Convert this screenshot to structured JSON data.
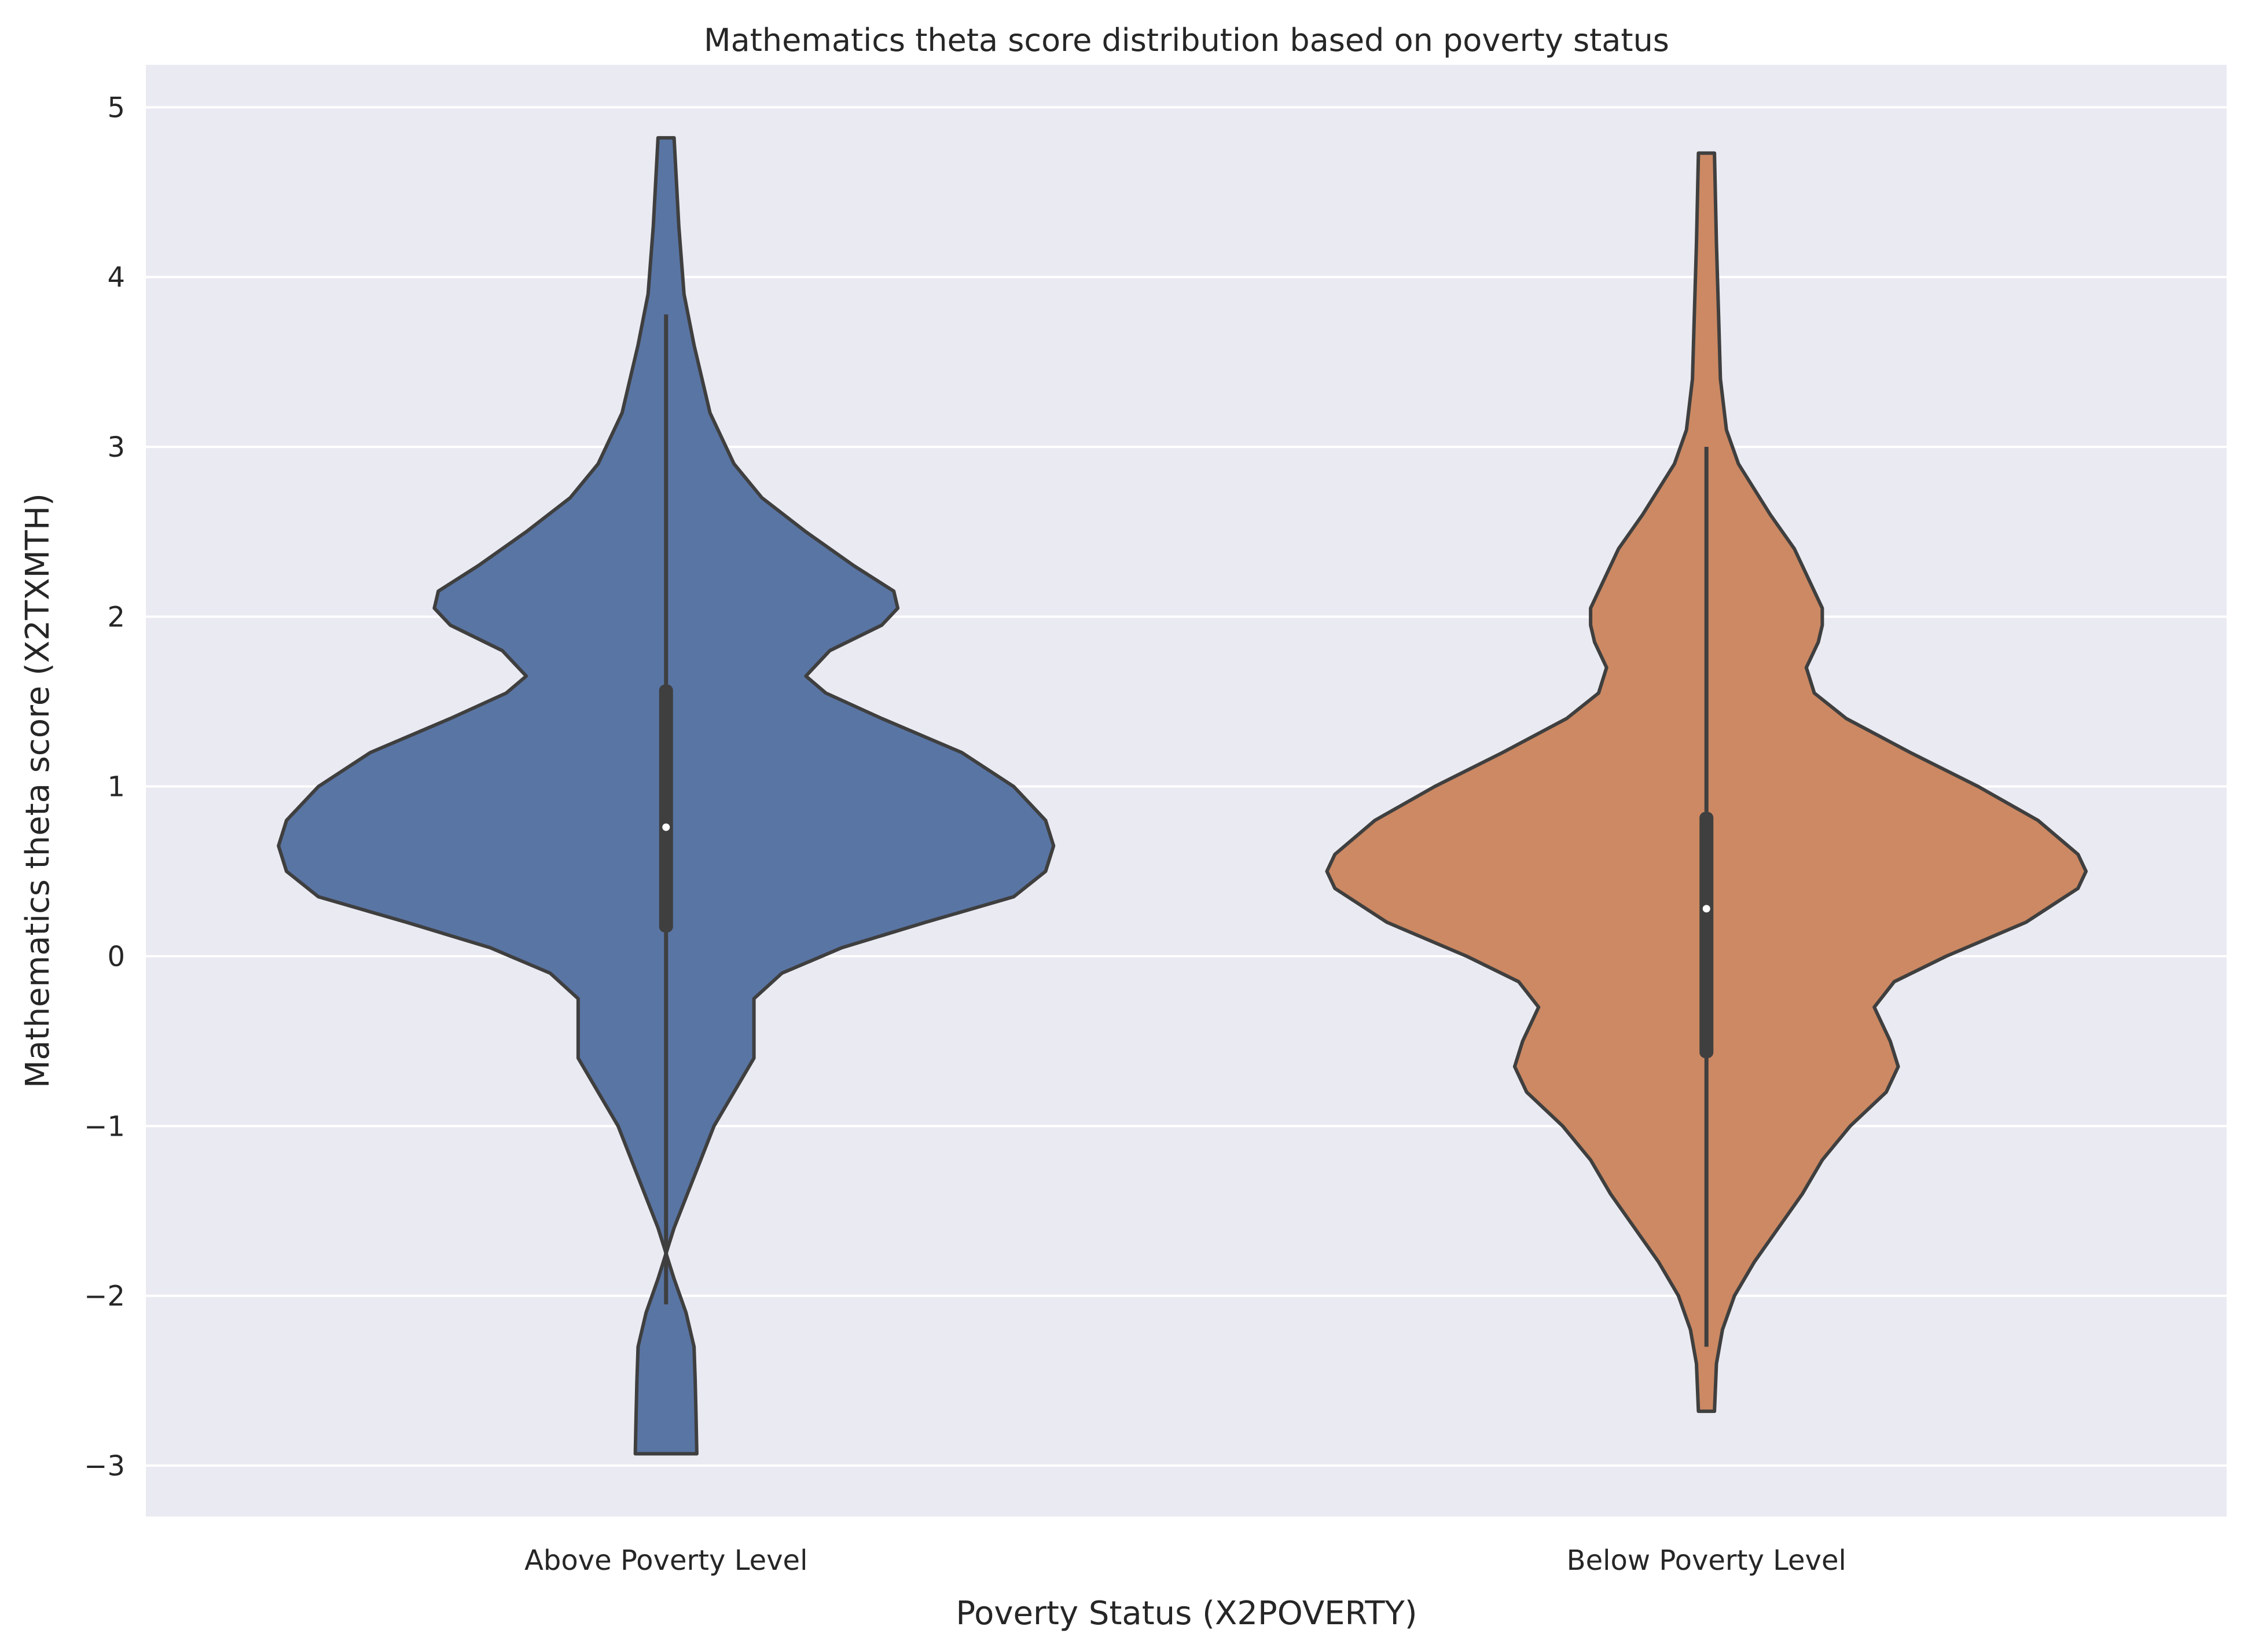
{
  "chart_data": {
    "type": "violin",
    "title": "Mathematics theta score distribution based on poverty status",
    "xlabel": "Poverty Status (X2POVERTY)",
    "ylabel": "Mathematics theta score (X2TXMTH)",
    "ylim": [
      -3.3,
      5.25
    ],
    "yticks": [
      -3,
      -2,
      -1,
      0,
      1,
      2,
      3,
      4,
      5
    ],
    "ytick_labels": [
      "−3",
      "−2",
      "−1",
      "0",
      "1",
      "2",
      "3",
      "4",
      "5"
    ],
    "grid": true,
    "categories": [
      "Above Poverty Level",
      "Below Poverty Level"
    ],
    "violins": [
      {
        "category": "Above Poverty Level",
        "color": "#5975a4",
        "min": -2.93,
        "max": 4.82,
        "whisker_low": -2.05,
        "whisker_high": 3.78,
        "q1": 0.14,
        "median": 0.76,
        "q3": 1.6,
        "density_profile": [
          [
            4.82,
            0.0
          ],
          [
            4.3,
            0.012
          ],
          [
            3.9,
            0.025
          ],
          [
            3.6,
            0.05
          ],
          [
            3.2,
            0.09
          ],
          [
            2.9,
            0.15
          ],
          [
            2.7,
            0.22
          ],
          [
            2.5,
            0.33
          ],
          [
            2.3,
            0.45
          ],
          [
            2.15,
            0.55
          ],
          [
            2.05,
            0.56
          ],
          [
            1.95,
            0.52
          ],
          [
            1.8,
            0.39
          ],
          [
            1.65,
            0.33
          ],
          [
            1.55,
            0.38
          ],
          [
            1.4,
            0.52
          ],
          [
            1.2,
            0.72
          ],
          [
            1.0,
            0.85
          ],
          [
            0.8,
            0.93
          ],
          [
            0.65,
            0.95
          ],
          [
            0.5,
            0.93
          ],
          [
            0.35,
            0.85
          ],
          [
            0.2,
            0.63
          ],
          [
            0.05,
            0.42
          ],
          [
            -0.1,
            0.27
          ],
          [
            -0.25,
            0.2
          ],
          [
            -0.45,
            0.2
          ],
          [
            -0.6,
            0.2
          ],
          [
            -0.8,
            0.15
          ],
          [
            -1.0,
            0.1
          ],
          [
            -1.3,
            0.05
          ],
          [
            -1.6,
            0.0
          ],
          [
            -1.9,
            -0.04
          ],
          [
            -2.1,
            -0.07
          ],
          [
            -2.3,
            -0.09
          ],
          [
            -2.5,
            -0.093
          ],
          [
            -2.7,
            -0.095
          ],
          [
            -2.93,
            -0.097
          ]
        ]
      },
      {
        "category": "Below Poverty Level",
        "color": "#cc8963",
        "min": -2.68,
        "max": 4.73,
        "whisker_low": -2.3,
        "whisker_high": 3.0,
        "q1": -0.6,
        "median": 0.28,
        "q3": 0.85,
        "density_profile": [
          [
            4.73,
            0.0
          ],
          [
            4.2,
            0.005
          ],
          [
            3.8,
            0.01
          ],
          [
            3.4,
            0.015
          ],
          [
            3.1,
            0.03
          ],
          [
            2.9,
            0.06
          ],
          [
            2.6,
            0.14
          ],
          [
            2.4,
            0.2
          ],
          [
            2.2,
            0.24
          ],
          [
            2.05,
            0.27
          ],
          [
            1.95,
            0.27
          ],
          [
            1.85,
            0.26
          ],
          [
            1.7,
            0.23
          ],
          [
            1.55,
            0.25
          ],
          [
            1.4,
            0.33
          ],
          [
            1.2,
            0.49
          ],
          [
            1.0,
            0.66
          ],
          [
            0.8,
            0.81
          ],
          [
            0.6,
            0.91
          ],
          [
            0.5,
            0.93
          ],
          [
            0.4,
            0.91
          ],
          [
            0.2,
            0.78
          ],
          [
            0.0,
            0.58
          ],
          [
            -0.15,
            0.45
          ],
          [
            -0.3,
            0.4
          ],
          [
            -0.5,
            0.44
          ],
          [
            -0.65,
            0.46
          ],
          [
            -0.8,
            0.43
          ],
          [
            -1.0,
            0.34
          ],
          [
            -1.2,
            0.27
          ],
          [
            -1.4,
            0.22
          ],
          [
            -1.6,
            0.16
          ],
          [
            -1.8,
            0.1
          ],
          [
            -2.0,
            0.05
          ],
          [
            -2.2,
            0.02
          ],
          [
            -2.4,
            0.005
          ],
          [
            -2.68,
            0.0
          ]
        ]
      }
    ],
    "style": {
      "background": "#eaeaf2",
      "grid_color": "#ffffff",
      "edge_color": "#3f3f3f",
      "median_color": "#ffffff"
    }
  }
}
